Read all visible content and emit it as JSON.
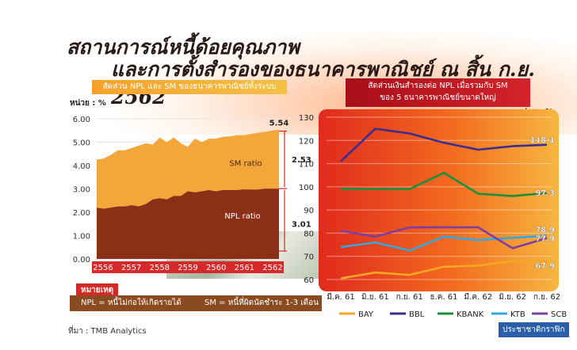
{
  "title": {
    "line1": "สถานการณ์หนี้ด้อยคุณภาพ",
    "line2": "และการตั้งสำรองของธนาคารพาณิชย์ ณ สิ้น ก.ย. 2562"
  },
  "left_header": "สัดส่วน NPL และ SM ของธนาคารพาณิชย์ทั้งระบบ",
  "right_header_line1": "สัดส่วนเงินสำรองต่อ NPL เมื่อรวมกับ SM",
  "right_header_line2": "ของ 5 ธนาคารพาณิชย์ขนาดใหญ่",
  "left_unit": "หน่วย : %",
  "right_unit": "หน่วย : %",
  "note_title": "หมายเหตุ",
  "note_npl": "NPL = หนี้ไม่ก่อให้เกิดรายได้",
  "note_sm": "SM = หนี้ที่ผิดนัดชำระ 1-3 เดือน",
  "source": "ที่มา : TMB Analytics",
  "brand": "ประชาชาติกราฟิก",
  "colors": {
    "npl_area": "#8c2f17",
    "sm_area": "#f3a73a",
    "bay": "#f5a623",
    "bbl": "#3a2e8f",
    "kbank": "#1c8f3c",
    "ktb": "#35a7e0",
    "scb": "#7b3fa1"
  },
  "chart_data": [
    {
      "type": "area",
      "title": "สัดส่วน NPL และ SM ของธนาคารพาณิชย์ทั้งระบบ",
      "ylabel": "หน่วย : %",
      "yticks": [
        "6.00",
        "5.00",
        "4.00",
        "3.00",
        "2.00",
        "1.00",
        "0.00"
      ],
      "ylim": [
        0,
        6
      ],
      "x_labels": [
        "2556",
        "2557",
        "2558",
        "2559",
        "2560",
        "2561",
        "2562"
      ],
      "stacked": true,
      "series": [
        {
          "name": "NPL ratio",
          "color": "#8c2f17",
          "values": [
            2.2,
            2.15,
            2.2,
            2.25,
            2.25,
            2.3,
            2.25,
            2.35,
            2.55,
            2.6,
            2.55,
            2.7,
            2.7,
            2.9,
            2.85,
            2.9,
            2.95,
            2.9,
            2.95,
            2.95,
            2.95,
            2.98,
            2.97,
            2.97,
            3.01,
            3.01,
            3.01
          ]
        },
        {
          "name": "SM ratio",
          "color": "#f3a73a",
          "values": [
            2.05,
            2.15,
            2.25,
            2.4,
            2.4,
            2.45,
            2.6,
            2.6,
            2.35,
            2.6,
            2.45,
            2.5,
            2.25,
            1.9,
            2.3,
            2.1,
            2.2,
            2.25,
            2.28,
            2.3,
            2.35,
            2.32,
            2.38,
            2.43,
            2.43,
            2.48,
            2.53
          ]
        }
      ],
      "annotations": {
        "total_label": "5.54",
        "sm_label": "2.53",
        "npl_label": "3.01",
        "sm_name": "SM ratio",
        "npl_name": "NPL ratio"
      }
    },
    {
      "type": "line",
      "title": "สัดส่วนเงินสำรองต่อ NPL เมื่อรวมกับ SM ของ 5 ธนาคารพาณิชย์ขนาดใหญ่",
      "ylabel": "หน่วย : %",
      "yticks": [
        "130",
        "120",
        "110",
        "100",
        "90",
        "80",
        "70",
        "60"
      ],
      "ylim": [
        60,
        130
      ],
      "categories": [
        "มี.ค. 61",
        "มิ.ย. 61",
        "ก.ย. 61",
        "ธ.ค. 61",
        "มี.ค. 62",
        "มิ.ย. 62",
        "ก.ย. 62"
      ],
      "series": [
        {
          "name": "BAY",
          "color": "#f5a623",
          "values": [
            60.5,
            63.0,
            62.0,
            65.5,
            66.0,
            68.0,
            67.9
          ],
          "end_label": "67.9"
        },
        {
          "name": "BBL",
          "color": "#3a2e8f",
          "values": [
            111.0,
            125.0,
            123.0,
            119.0,
            116.0,
            117.5,
            118.1
          ],
          "end_label": "118.1"
        },
        {
          "name": "KBANK",
          "color": "#1c8f3c",
          "values": [
            99.0,
            99.0,
            99.0,
            106.0,
            97.0,
            96.0,
            97.3
          ],
          "end_label": "97.3"
        },
        {
          "name": "KTB",
          "color": "#35a7e0",
          "values": [
            74.0,
            76.0,
            72.5,
            78.5,
            77.0,
            78.0,
            78.9
          ],
          "end_label": "78.9"
        },
        {
          "name": "SCB",
          "color": "#7b3fa1",
          "values": [
            81.0,
            78.5,
            82.5,
            82.5,
            82.5,
            73.5,
            77.9
          ],
          "end_label": "77.9"
        }
      ]
    }
  ]
}
